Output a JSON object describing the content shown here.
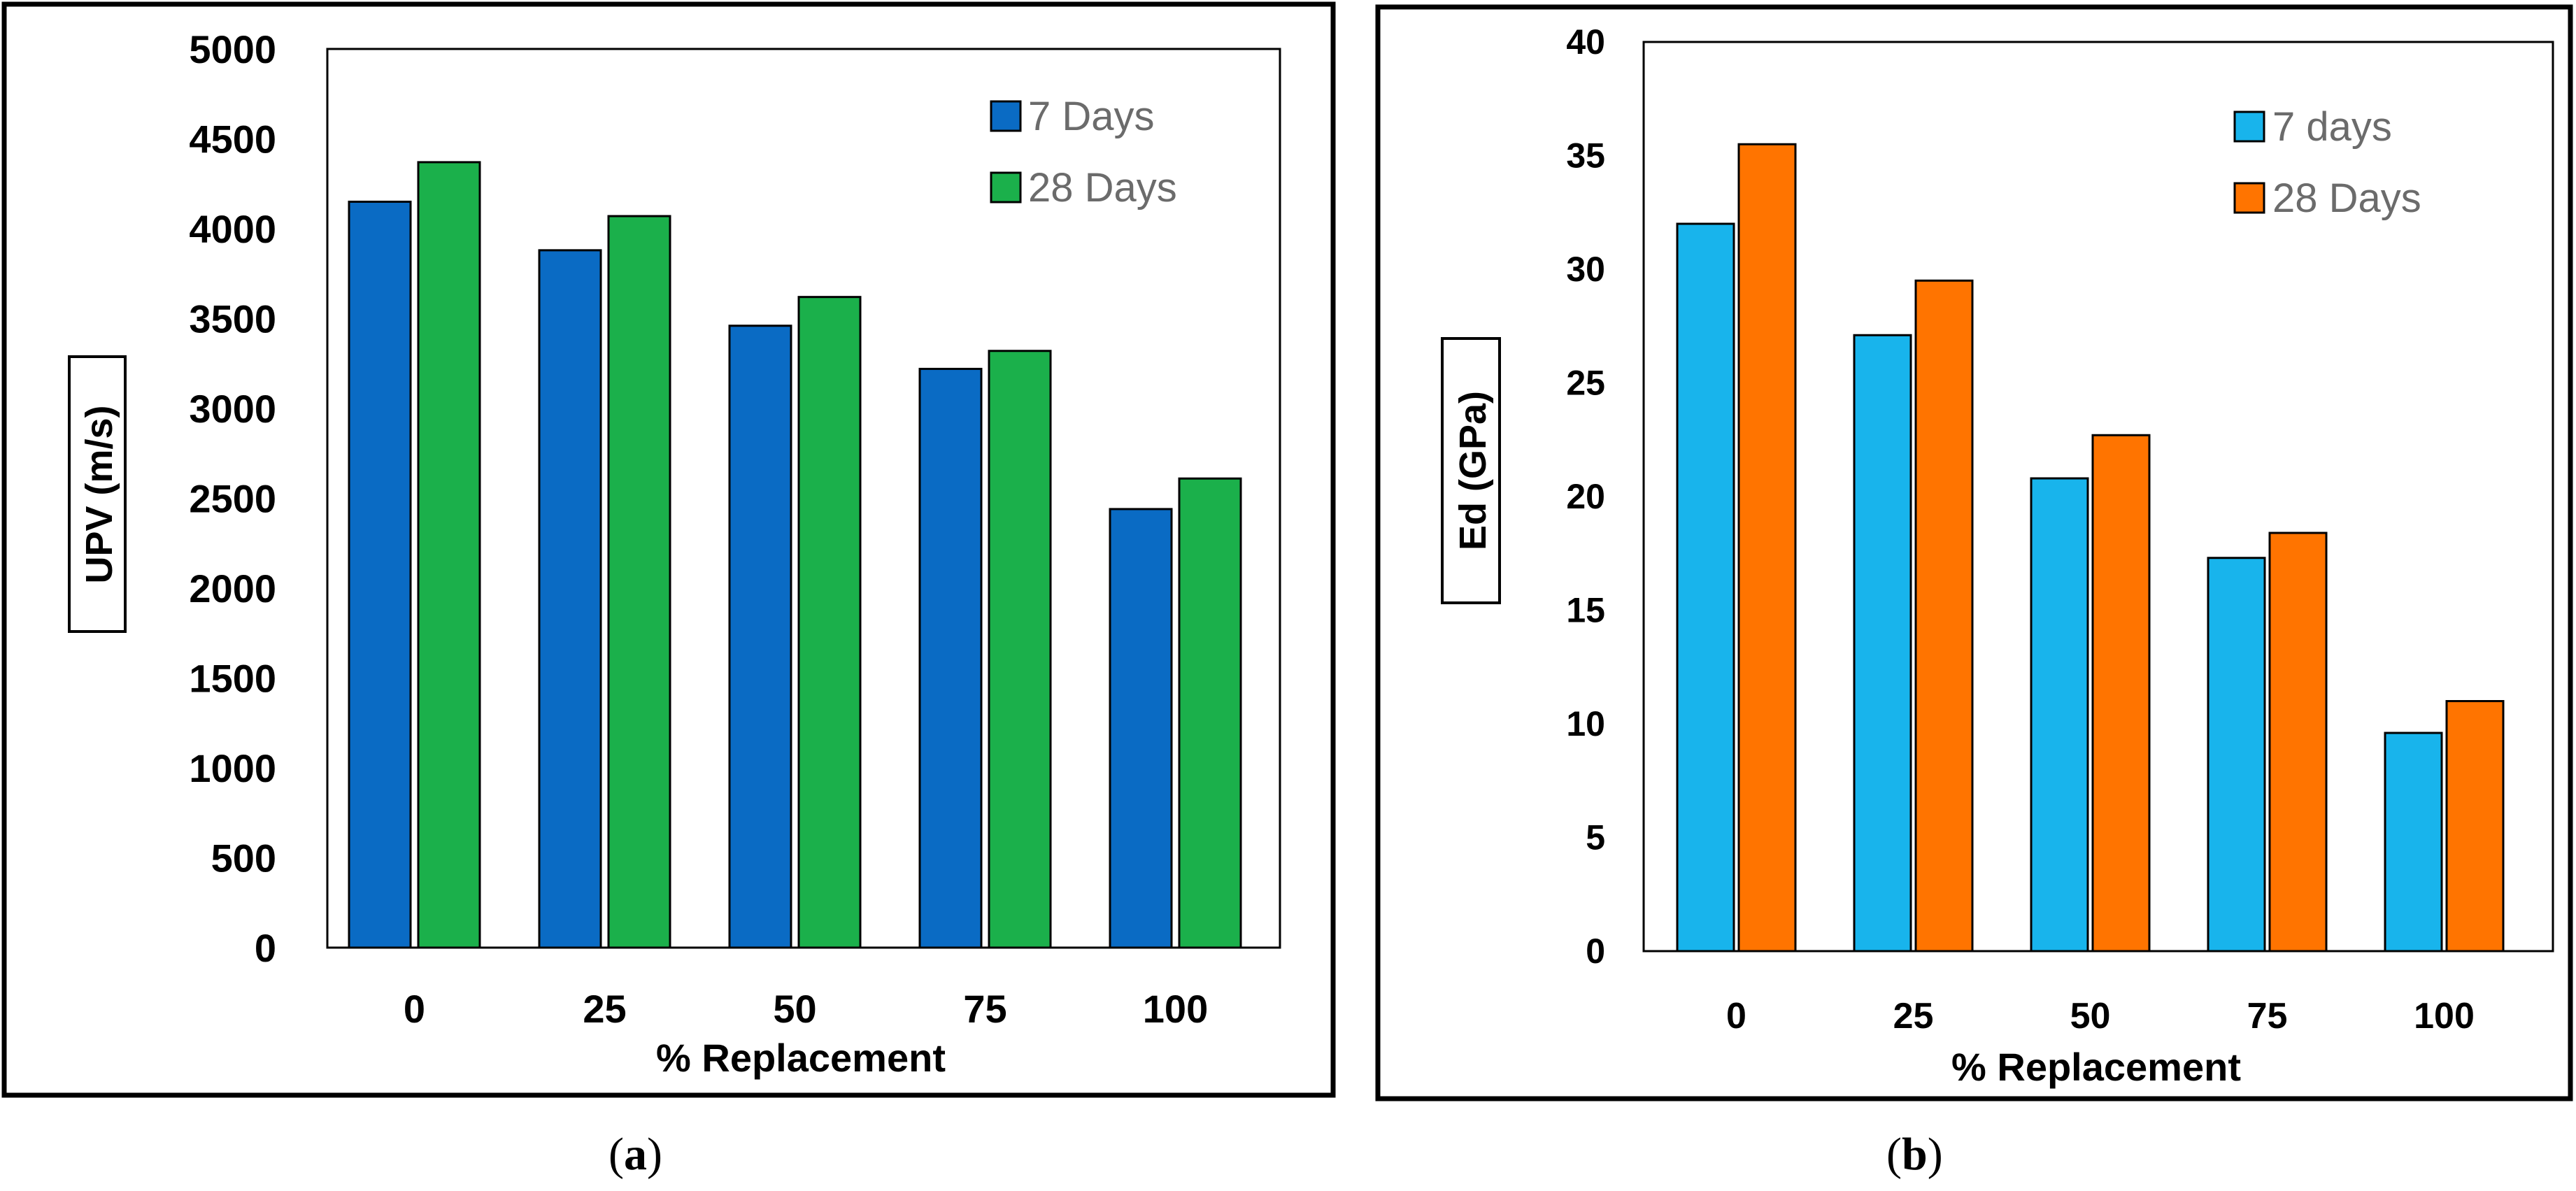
{
  "chart_data": [
    {
      "id": "a",
      "type": "bar",
      "categories": [
        "0",
        "25",
        "50",
        "75",
        "100"
      ],
      "series": [
        {
          "name": "7 Days",
          "values": [
            4150,
            3880,
            3460,
            3220,
            2440
          ],
          "color": "#0a6bc4"
        },
        {
          "name": "28 Days",
          "values": [
            4370,
            4070,
            3620,
            3320,
            2610
          ],
          "color": "#1bb04b"
        }
      ],
      "xlabel": "% Replacement",
      "ylabel": "UPV (m/s)",
      "ylim": [
        0,
        5000
      ],
      "yticks": [
        0,
        500,
        1000,
        1500,
        2000,
        2500,
        3000,
        3500,
        4000,
        4500,
        5000
      ],
      "legend_position": "top-right",
      "caption_letter": "a"
    },
    {
      "id": "b",
      "type": "bar",
      "categories": [
        "0",
        "25",
        "50",
        "75",
        "100"
      ],
      "series": [
        {
          "name": "7 days",
          "values": [
            32,
            27.1,
            20.8,
            17.3,
            9.6
          ],
          "color": "#18b4ec"
        },
        {
          "name": "28 Days",
          "values": [
            35.5,
            29.5,
            22.7,
            18.4,
            11
          ],
          "color": "#ff7400"
        }
      ],
      "xlabel": "% Replacement",
      "ylabel": "Ed (GPa)",
      "ylim": [
        0,
        40
      ],
      "yticks": [
        0,
        5,
        10,
        15,
        20,
        25,
        30,
        35,
        40
      ],
      "legend_position": "top-right",
      "caption_letter": "b"
    }
  ]
}
